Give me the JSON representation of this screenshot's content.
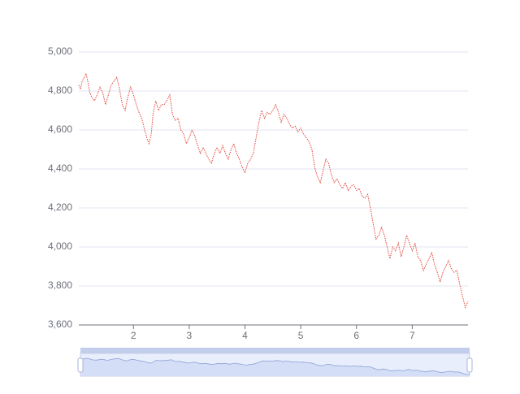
{
  "chart_data": {
    "type": "line",
    "color": "#e5483d",
    "grid": true,
    "x": [
      1.02,
      1.05,
      1.08,
      1.12,
      1.15,
      1.18,
      1.22,
      1.25,
      1.3,
      1.35,
      1.4,
      1.45,
      1.5,
      1.55,
      1.6,
      1.65,
      1.7,
      1.75,
      1.8,
      1.85,
      1.9,
      1.95,
      2.0,
      2.05,
      2.1,
      2.15,
      2.2,
      2.25,
      2.28,
      2.32,
      2.35,
      2.4,
      2.45,
      2.5,
      2.55,
      2.6,
      2.65,
      2.7,
      2.75,
      2.8,
      2.85,
      2.9,
      2.95,
      3.0,
      3.05,
      3.1,
      3.15,
      3.2,
      3.25,
      3.3,
      3.35,
      3.4,
      3.45,
      3.5,
      3.55,
      3.6,
      3.65,
      3.7,
      3.75,
      3.8,
      3.85,
      3.9,
      3.95,
      4.0,
      4.05,
      4.1,
      4.15,
      4.2,
      4.25,
      4.3,
      4.35,
      4.4,
      4.45,
      4.5,
      4.55,
      4.6,
      4.65,
      4.7,
      4.75,
      4.8,
      4.85,
      4.9,
      4.95,
      5.0,
      5.05,
      5.1,
      5.15,
      5.2,
      5.25,
      5.3,
      5.35,
      5.4,
      5.45,
      5.5,
      5.55,
      5.6,
      5.65,
      5.7,
      5.75,
      5.8,
      5.85,
      5.9,
      5.95,
      6.0,
      6.05,
      6.1,
      6.15,
      6.2,
      6.25,
      6.3,
      6.35,
      6.4,
      6.45,
      6.5,
      6.55,
      6.6,
      6.65,
      6.7,
      6.75,
      6.8,
      6.85,
      6.9,
      6.95,
      7.0,
      7.05,
      7.1,
      7.15,
      7.2,
      7.25,
      7.3,
      7.35,
      7.4,
      7.45,
      7.5,
      7.55,
      7.6,
      7.65,
      7.7,
      7.75,
      7.8,
      7.85,
      7.9,
      7.95,
      8.0
    ],
    "values": [
      4830,
      4810,
      4850,
      4870,
      4890,
      4850,
      4790,
      4770,
      4750,
      4780,
      4820,
      4790,
      4730,
      4780,
      4830,
      4850,
      4870,
      4810,
      4730,
      4700,
      4770,
      4820,
      4780,
      4730,
      4690,
      4660,
      4600,
      4550,
      4530,
      4580,
      4680,
      4750,
      4700,
      4730,
      4730,
      4750,
      4780,
      4680,
      4650,
      4660,
      4600,
      4580,
      4530,
      4560,
      4600,
      4570,
      4520,
      4480,
      4510,
      4480,
      4450,
      4430,
      4480,
      4510,
      4480,
      4520,
      4480,
      4450,
      4500,
      4530,
      4480,
      4450,
      4410,
      4380,
      4430,
      4450,
      4480,
      4560,
      4640,
      4700,
      4660,
      4690,
      4680,
      4700,
      4730,
      4690,
      4640,
      4680,
      4660,
      4630,
      4610,
      4620,
      4590,
      4610,
      4580,
      4560,
      4540,
      4500,
      4410,
      4360,
      4330,
      4390,
      4450,
      4430,
      4370,
      4330,
      4350,
      4320,
      4300,
      4330,
      4290,
      4310,
      4320,
      4290,
      4300,
      4260,
      4250,
      4270,
      4200,
      4120,
      4040,
      4060,
      4100,
      4060,
      4000,
      3940,
      4000,
      3980,
      4020,
      3950,
      4000,
      4060,
      4020,
      3980,
      4020,
      3950,
      3930,
      3880,
      3910,
      3940,
      3970,
      3910,
      3870,
      3820,
      3870,
      3900,
      3930,
      3890,
      3870,
      3880,
      3810,
      3750,
      3690,
      3720
    ],
    "xlim": [
      1.02,
      8.0
    ],
    "xticks": [
      2,
      3,
      4,
      5,
      6,
      7
    ],
    "ylim": [
      3600,
      5000
    ],
    "yticks": [
      {
        "value": 3600,
        "label": "3,600"
      },
      {
        "value": 3800,
        "label": "3,800"
      },
      {
        "value": 4000,
        "label": "4,000"
      },
      {
        "value": 4200,
        "label": "4,200"
      },
      {
        "value": 4400,
        "label": "4,400"
      },
      {
        "value": 4600,
        "label": "4,600"
      },
      {
        "value": 4800,
        "label": "4,800"
      },
      {
        "value": 5000,
        "label": "5,000"
      }
    ]
  }
}
